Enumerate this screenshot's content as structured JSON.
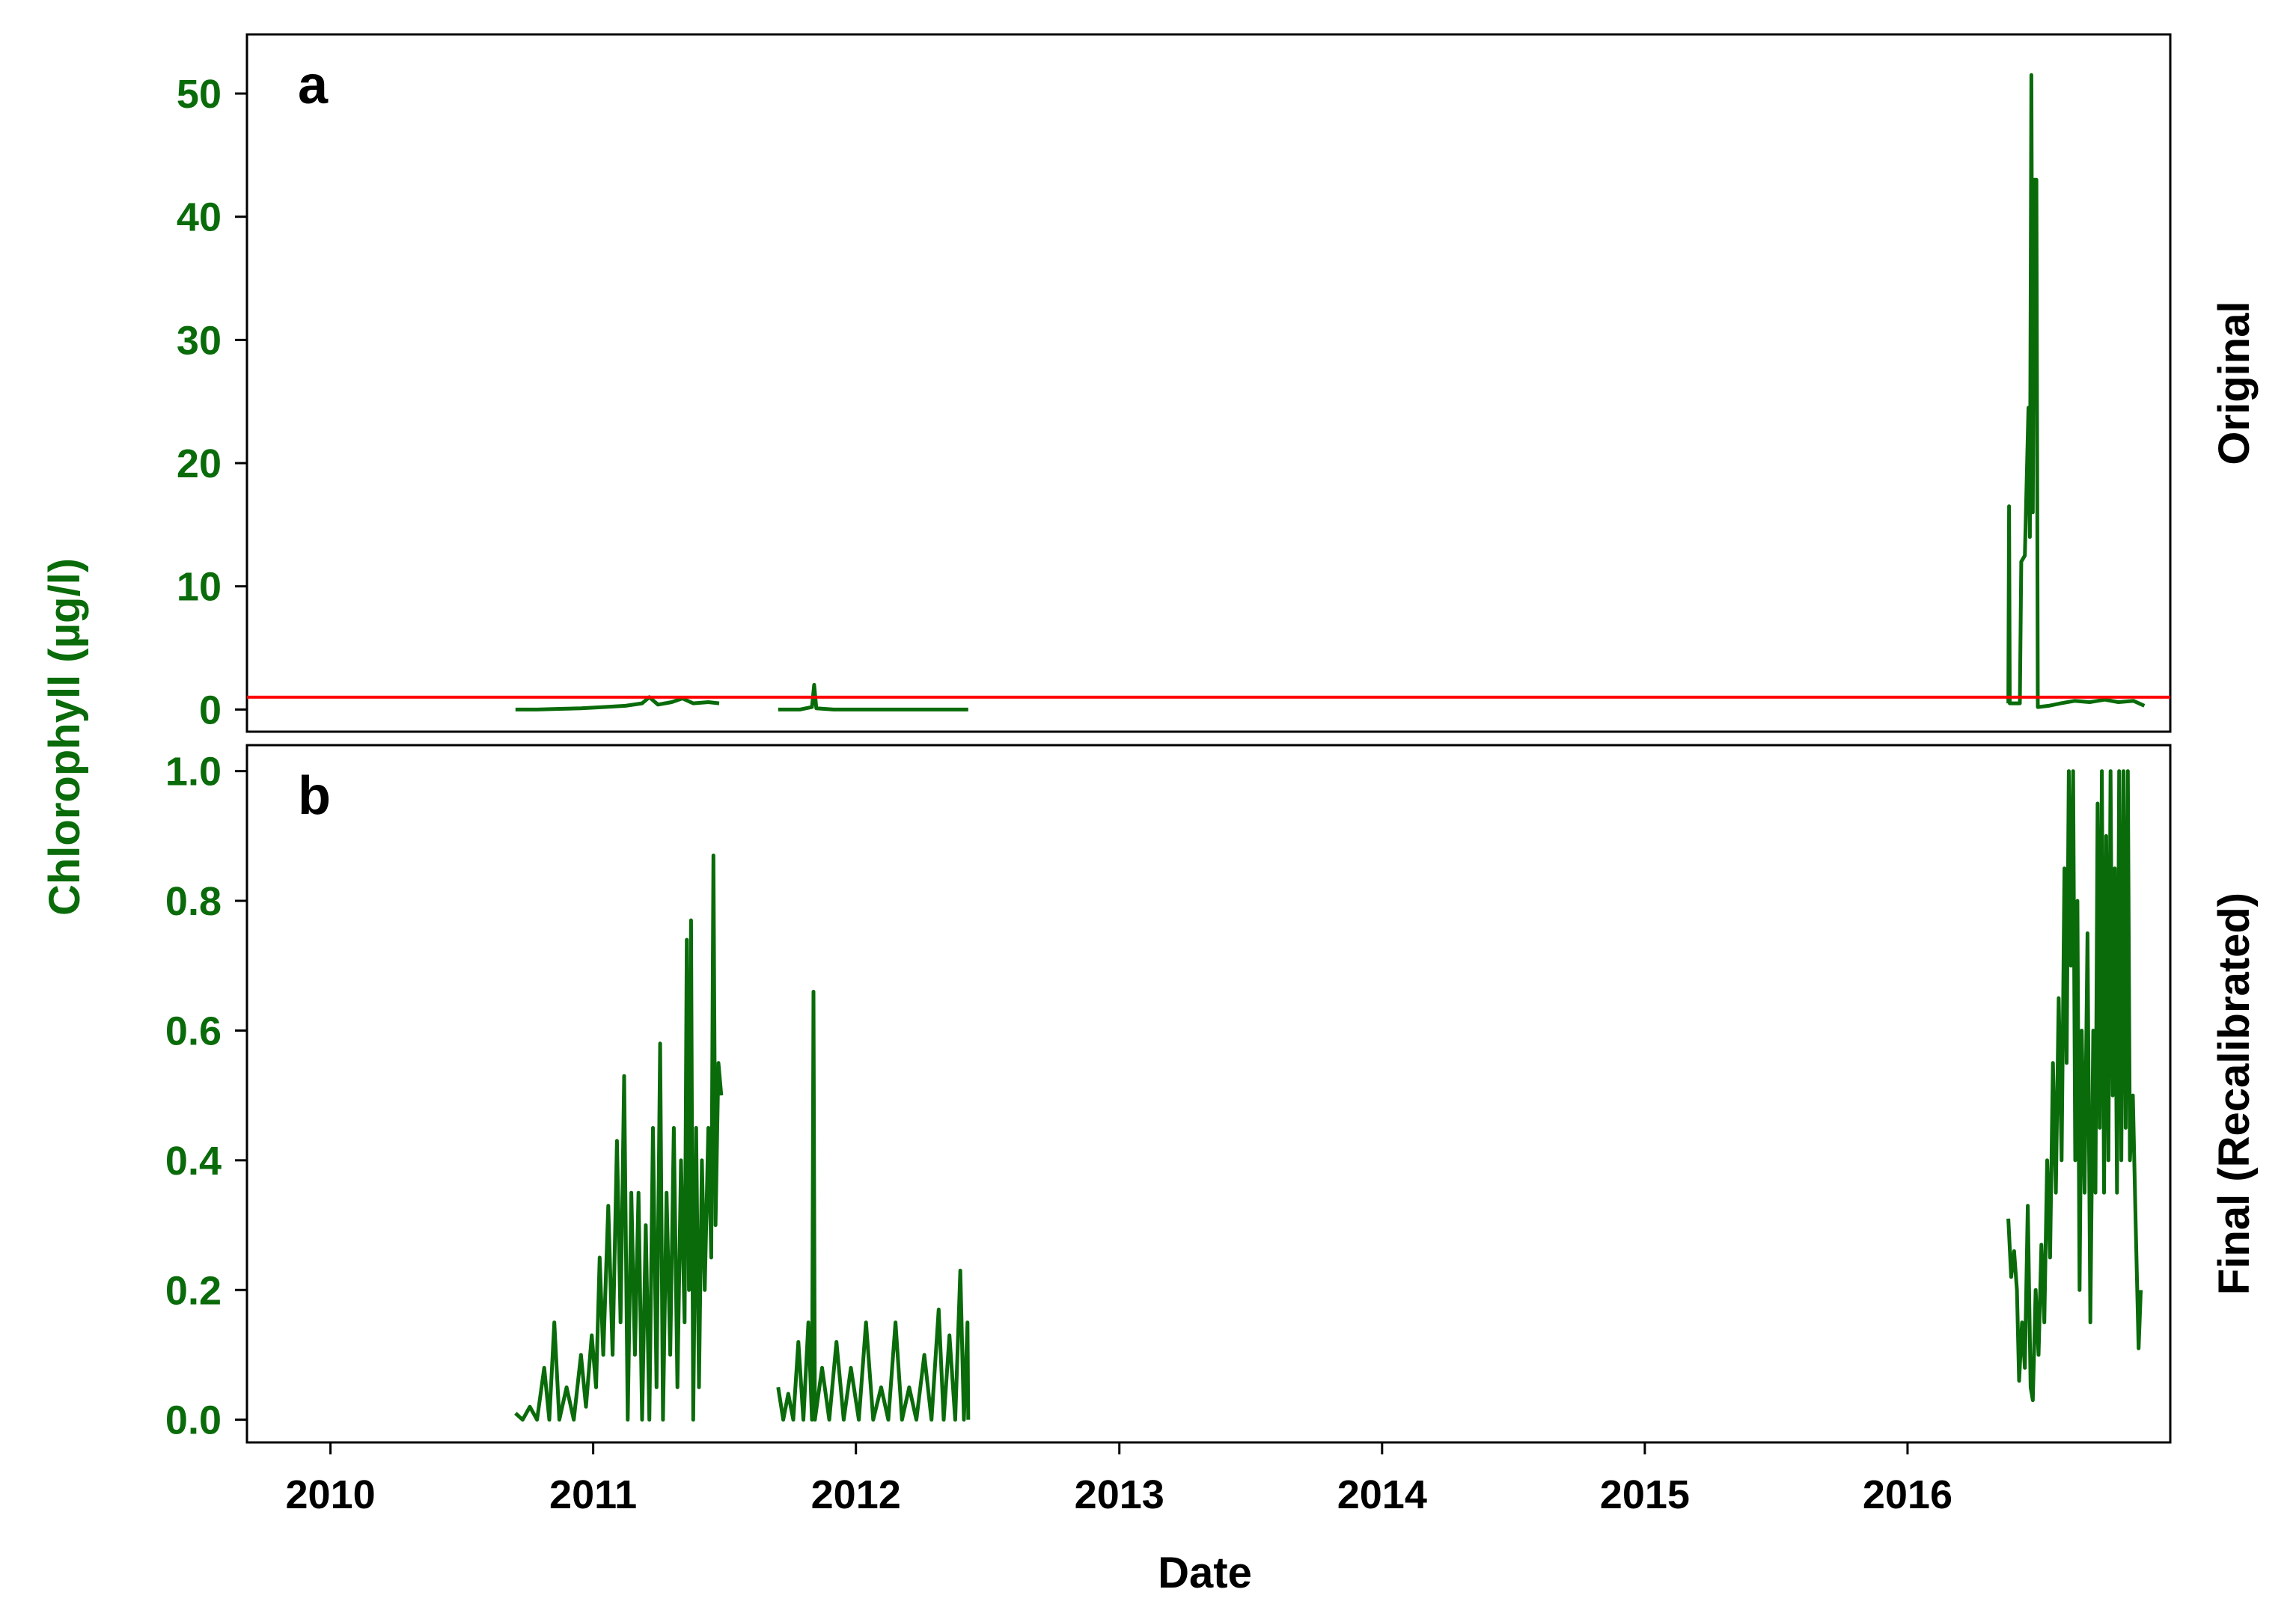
{
  "chart_data": {
    "type": "line",
    "xlabel": "Date",
    "ylabel": "Chlorophyll (µg/l)",
    "line_color": "#0a6b0a",
    "label_color": "#0a6b0a",
    "x_ticks": [
      "2010",
      "2011",
      "2012",
      "2013",
      "2014",
      "2015",
      "2016"
    ],
    "xlim": [
      "2009-09-07",
      "2016-12-31"
    ],
    "panels": [
      {
        "id": "a",
        "letter": "a",
        "facet_label": "Original",
        "ylim": [
          -1.8,
          54.8
        ],
        "y_ticks": [
          "0",
          "10",
          "20",
          "30",
          "40",
          "50"
        ],
        "y_tick_values": [
          0,
          10,
          20,
          30,
          40,
          50
        ],
        "threshold": {
          "value": 1.0,
          "color": "#ff0000"
        },
        "series": [
          {
            "points": [
              [
                "2010-09-15",
                0.0
              ],
              [
                "2010-10-15",
                0.0
              ],
              [
                "2010-11-15",
                0.05
              ],
              [
                "2010-12-15",
                0.1
              ],
              [
                "2011-01-15",
                0.2
              ],
              [
                "2011-02-15",
                0.3
              ],
              [
                "2011-03-10",
                0.5
              ],
              [
                "2011-03-20",
                1.0
              ],
              [
                "2011-04-01",
                0.4
              ],
              [
                "2011-04-20",
                0.6
              ],
              [
                "2011-05-05",
                0.9
              ],
              [
                "2011-05-20",
                0.5
              ],
              [
                "2011-06-10",
                0.6
              ],
              [
                "2011-06-25",
                0.5
              ],
              null,
              [
                "2011-09-15",
                0.0
              ],
              [
                "2011-10-15",
                0.0
              ],
              [
                "2011-11-01",
                0.2
              ],
              [
                "2011-11-04",
                2.0
              ],
              [
                "2011-11-07",
                0.1
              ],
              [
                "2011-12-01",
                0.0
              ],
              [
                "2012-01-15",
                0.0
              ],
              [
                "2012-02-15",
                0.0
              ],
              [
                "2012-03-15",
                0.0
              ],
              [
                "2012-04-15",
                0.0
              ],
              [
                "2012-05-15",
                0.0
              ],
              [
                "2012-06-05",
                0.0
              ],
              null,
              [
                "2016-05-20",
                0.5
              ],
              [
                "2016-05-21",
                16.5
              ],
              [
                "2016-05-22",
                0.5
              ],
              [
                "2016-06-05",
                0.5
              ],
              [
                "2016-06-07",
                12.0
              ],
              [
                "2016-06-12",
                12.5
              ],
              [
                "2016-06-17",
                24.5
              ],
              [
                "2016-06-19",
                14.0
              ],
              [
                "2016-06-21",
                51.5
              ],
              [
                "2016-06-23",
                16.0
              ],
              [
                "2016-06-25",
                43.0
              ],
              [
                "2016-06-28",
                43.0
              ],
              [
                "2016-06-30",
                0.2
              ],
              [
                "2016-07-15",
                0.3
              ],
              [
                "2016-08-01",
                0.5
              ],
              [
                "2016-08-20",
                0.7
              ],
              [
                "2016-09-10",
                0.6
              ],
              [
                "2016-10-01",
                0.8
              ],
              [
                "2016-10-20",
                0.6
              ],
              [
                "2016-11-10",
                0.7
              ],
              [
                "2016-11-25",
                0.3
              ]
            ]
          }
        ]
      },
      {
        "id": "b",
        "letter": "b",
        "facet_label": "Final (Recalibrated)",
        "ylim": [
          -0.035,
          1.04
        ],
        "y_ticks": [
          "0.0",
          "0.2",
          "0.4",
          "0.6",
          "0.8",
          "1.0"
        ],
        "y_tick_values": [
          0.0,
          0.2,
          0.4,
          0.6,
          0.8,
          1.0
        ],
        "series": [
          {
            "points": [
              [
                "2010-09-15",
                0.01
              ],
              [
                "2010-09-25",
                0.0
              ],
              [
                "2010-10-05",
                0.02
              ],
              [
                "2010-10-15",
                0.0
              ],
              [
                "2010-10-25",
                0.08
              ],
              [
                "2010-11-01",
                0.0
              ],
              [
                "2010-11-08",
                0.15
              ],
              [
                "2010-11-15",
                0.0
              ],
              [
                "2010-11-25",
                0.05
              ],
              [
                "2010-12-05",
                0.0
              ],
              [
                "2010-12-15",
                0.1
              ],
              [
                "2010-12-22",
                0.02
              ],
              [
                "2010-12-30",
                0.13
              ],
              [
                "2011-01-05",
                0.05
              ],
              [
                "2011-01-10",
                0.25
              ],
              [
                "2011-01-15",
                0.1
              ],
              [
                "2011-01-22",
                0.33
              ],
              [
                "2011-01-28",
                0.1
              ],
              [
                "2011-02-03",
                0.43
              ],
              [
                "2011-02-08",
                0.15
              ],
              [
                "2011-02-13",
                0.53
              ],
              [
                "2011-02-18",
                0.0
              ],
              [
                "2011-02-23",
                0.35
              ],
              [
                "2011-02-28",
                0.1
              ],
              [
                "2011-03-05",
                0.35
              ],
              [
                "2011-03-10",
                0.0
              ],
              [
                "2011-03-15",
                0.3
              ],
              [
                "2011-03-20",
                0.0
              ],
              [
                "2011-03-25",
                0.45
              ],
              [
                "2011-03-30",
                0.05
              ],
              [
                "2011-04-04",
                0.58
              ],
              [
                "2011-04-08",
                0.0
              ],
              [
                "2011-04-13",
                0.35
              ],
              [
                "2011-04-18",
                0.1
              ],
              [
                "2011-04-23",
                0.45
              ],
              [
                "2011-04-28",
                0.05
              ],
              [
                "2011-05-03",
                0.4
              ],
              [
                "2011-05-08",
                0.15
              ],
              [
                "2011-05-11",
                0.74
              ],
              [
                "2011-05-14",
                0.2
              ],
              [
                "2011-05-17",
                0.77
              ],
              [
                "2011-05-20",
                0.0
              ],
              [
                "2011-05-24",
                0.45
              ],
              [
                "2011-05-28",
                0.05
              ],
              [
                "2011-06-01",
                0.4
              ],
              [
                "2011-06-05",
                0.2
              ],
              [
                "2011-06-10",
                0.45
              ],
              [
                "2011-06-14",
                0.25
              ],
              [
                "2011-06-17",
                0.87
              ],
              [
                "2011-06-20",
                0.3
              ],
              [
                "2011-06-24",
                0.55
              ],
              [
                "2011-06-28",
                0.5
              ],
              null,
              [
                "2011-09-15",
                0.05
              ],
              [
                "2011-09-22",
                0.0
              ],
              [
                "2011-09-29",
                0.04
              ],
              [
                "2011-10-06",
                0.0
              ],
              [
                "2011-10-13",
                0.12
              ],
              [
                "2011-10-20",
                0.0
              ],
              [
                "2011-10-27",
                0.15
              ],
              [
                "2011-11-01",
                0.0
              ],
              [
                "2011-11-03",
                0.66
              ],
              [
                "2011-11-05",
                0.0
              ],
              [
                "2011-11-15",
                0.08
              ],
              [
                "2011-11-25",
                0.0
              ],
              [
                "2011-12-05",
                0.12
              ],
              [
                "2011-12-15",
                0.0
              ],
              [
                "2011-12-25",
                0.08
              ],
              [
                "2012-01-05",
                0.0
              ],
              [
                "2012-01-15",
                0.15
              ],
              [
                "2012-01-25",
                0.0
              ],
              [
                "2012-02-05",
                0.05
              ],
              [
                "2012-02-15",
                0.0
              ],
              [
                "2012-02-25",
                0.15
              ],
              [
                "2012-03-05",
                0.0
              ],
              [
                "2012-03-15",
                0.05
              ],
              [
                "2012-03-25",
                0.0
              ],
              [
                "2012-04-05",
                0.1
              ],
              [
                "2012-04-15",
                0.0
              ],
              [
                "2012-04-25",
                0.17
              ],
              [
                "2012-05-02",
                0.0
              ],
              [
                "2012-05-10",
                0.13
              ],
              [
                "2012-05-18",
                0.0
              ],
              [
                "2012-05-25",
                0.23
              ],
              [
                "2012-05-30",
                0.0
              ],
              [
                "2012-06-04",
                0.15
              ],
              [
                "2012-06-05",
                0.0
              ],
              null,
              [
                "2016-05-20",
                0.31
              ],
              [
                "2016-05-24",
                0.22
              ],
              [
                "2016-05-28",
                0.26
              ],
              [
                "2016-06-01",
                0.2
              ],
              [
                "2016-06-04",
                0.06
              ],
              [
                "2016-06-08",
                0.15
              ],
              [
                "2016-06-12",
                0.08
              ],
              [
                "2016-06-16",
                0.33
              ],
              [
                "2016-06-20",
                0.05
              ],
              [
                "2016-06-23",
                0.03
              ],
              [
                "2016-06-27",
                0.2
              ],
              [
                "2016-07-01",
                0.1
              ],
              [
                "2016-07-05",
                0.27
              ],
              [
                "2016-07-09",
                0.15
              ],
              [
                "2016-07-13",
                0.4
              ],
              [
                "2016-07-17",
                0.25
              ],
              [
                "2016-07-21",
                0.55
              ],
              [
                "2016-07-25",
                0.35
              ],
              [
                "2016-07-29",
                0.65
              ],
              [
                "2016-08-02",
                0.4
              ],
              [
                "2016-08-06",
                0.85
              ],
              [
                "2016-08-09",
                0.55
              ],
              [
                "2016-08-12",
                1.0
              ],
              [
                "2016-08-15",
                0.7
              ],
              [
                "2016-08-18",
                1.0
              ],
              [
                "2016-08-21",
                0.4
              ],
              [
                "2016-08-24",
                0.8
              ],
              [
                "2016-08-27",
                0.2
              ],
              [
                "2016-08-30",
                0.6
              ],
              [
                "2016-09-03",
                0.35
              ],
              [
                "2016-09-07",
                0.75
              ],
              [
                "2016-09-11",
                0.15
              ],
              [
                "2016-09-15",
                0.6
              ],
              [
                "2016-09-18",
                0.35
              ],
              [
                "2016-09-21",
                0.95
              ],
              [
                "2016-09-24",
                0.45
              ],
              [
                "2016-09-27",
                1.0
              ],
              [
                "2016-09-30",
                0.35
              ],
              [
                "2016-10-03",
                0.9
              ],
              [
                "2016-10-06",
                0.4
              ],
              [
                "2016-10-09",
                1.0
              ],
              [
                "2016-10-12",
                0.5
              ],
              [
                "2016-10-15",
                0.85
              ],
              [
                "2016-10-18",
                0.35
              ],
              [
                "2016-10-21",
                1.0
              ],
              [
                "2016-10-24",
                0.4
              ],
              [
                "2016-10-27",
                1.0
              ],
              [
                "2016-10-30",
                0.45
              ],
              [
                "2016-11-02",
                1.0
              ],
              [
                "2016-11-05",
                0.4
              ],
              [
                "2016-11-09",
                0.5
              ],
              [
                "2016-11-13",
                0.3
              ],
              [
                "2016-11-17",
                0.11
              ],
              [
                "2016-11-20",
                0.2
              ]
            ]
          }
        ]
      }
    ]
  }
}
